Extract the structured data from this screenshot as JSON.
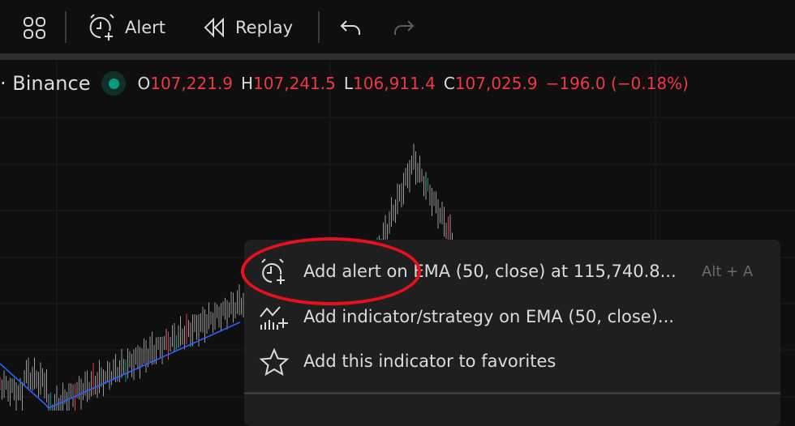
{
  "toolbar": {
    "layouts_icon": "grid-2x2-icon",
    "alert_label": "Alert",
    "replay_label": "Replay",
    "undo_icon": "undo-icon",
    "redo_icon": "redo-icon"
  },
  "legend": {
    "symbol_suffix": "· Binance",
    "market_status_color": "#089981",
    "open_key": "O",
    "open": "107,221.9",
    "high_key": "H",
    "high": "107,241.5",
    "low_key": "L",
    "low": "106,911.4",
    "close_key": "C",
    "close": "107,025.9",
    "change": "−196.0 (−0.18%)",
    "change_color": "#f23645"
  },
  "context_menu": {
    "items": [
      {
        "icon": "alarm-add-icon",
        "label": "Add alert on EMA (50, close) at 115,740.8...",
        "shortcut": "Alt + A"
      },
      {
        "icon": "indicator-add-icon",
        "label": "Add indicator/strategy on EMA (50, close)..."
      },
      {
        "icon": "star-icon",
        "label": "Add this indicator to favorites"
      }
    ],
    "highlight_color": "#e8101e"
  },
  "colors": {
    "up": "#089981",
    "down": "#f23645",
    "ema": "#2962ff",
    "background": "#0f0f0f"
  }
}
